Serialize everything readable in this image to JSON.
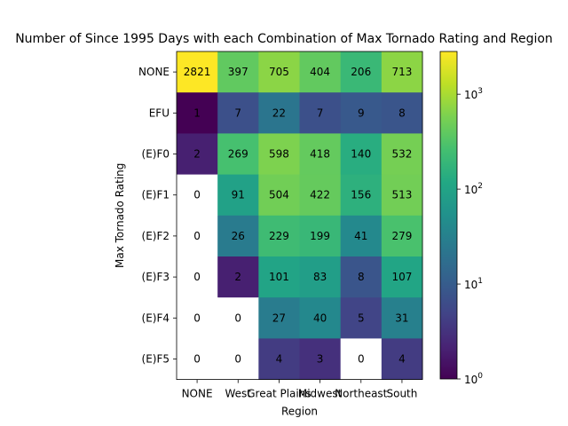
{
  "chart_data": {
    "type": "heatmap",
    "title": "Number of Since 1995 Days with each Combination of Max Tornado Rating and Region",
    "xlabel": "Region",
    "ylabel": "Max Tornado Rating",
    "x_categories": [
      "NONE",
      "West",
      "Great Plains",
      "Midwest",
      "Northeast",
      "South"
    ],
    "y_categories": [
      "NONE",
      "EFU",
      "(E)F0",
      "(E)F1",
      "(E)F2",
      "(E)F3",
      "(E)F4",
      "(E)F5"
    ],
    "values": [
      [
        2821,
        397,
        705,
        404,
        206,
        713
      ],
      [
        1,
        7,
        22,
        7,
        9,
        8
      ],
      [
        2,
        269,
        598,
        418,
        140,
        532
      ],
      [
        0,
        91,
        504,
        422,
        156,
        513
      ],
      [
        0,
        26,
        229,
        199,
        41,
        279
      ],
      [
        0,
        2,
        101,
        83,
        8,
        107
      ],
      [
        0,
        0,
        27,
        40,
        5,
        31
      ],
      [
        0,
        0,
        4,
        3,
        0,
        4
      ]
    ],
    "color_scale": "log",
    "colormap": "viridis",
    "colorbar": {
      "min": 1,
      "max": 2821,
      "tick_values": [
        1,
        10,
        100,
        1000
      ],
      "tick_labels": [
        {
          "base": "10",
          "exp": "0"
        },
        {
          "base": "10",
          "exp": "1"
        },
        {
          "base": "10",
          "exp": "2"
        },
        {
          "base": "10",
          "exp": "3"
        }
      ]
    },
    "zero_color": "#ffffff",
    "grid": false
  }
}
